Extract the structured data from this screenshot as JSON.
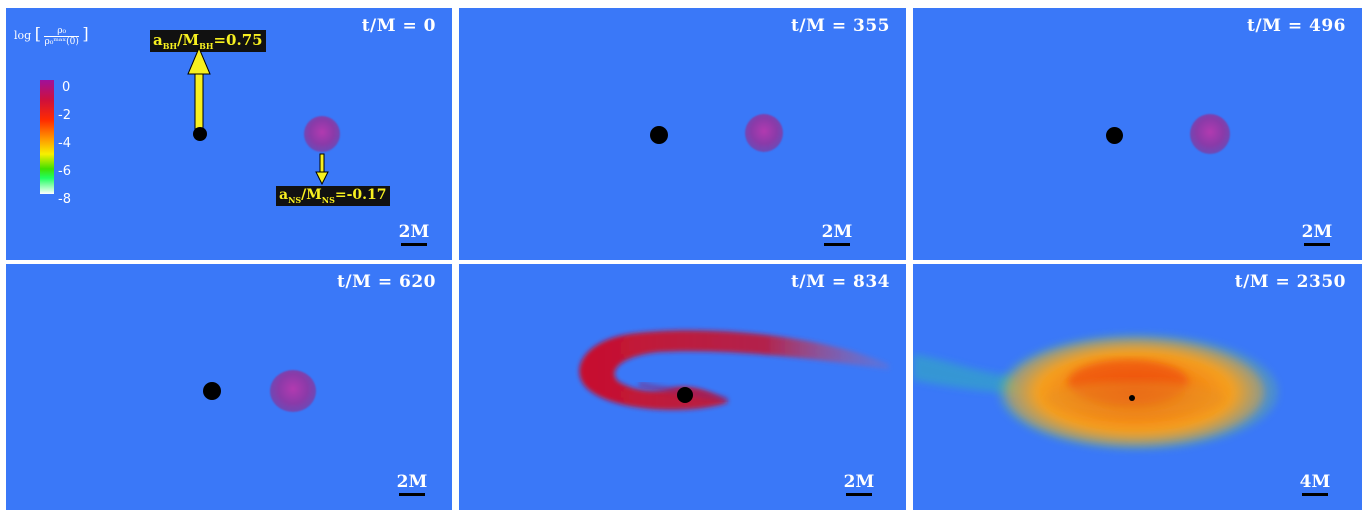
{
  "panels": [
    {
      "time": "t/M = 0",
      "scale": "2M"
    },
    {
      "time": "t/M = 355",
      "scale": "2M"
    },
    {
      "time": "t/M = 496",
      "scale": "2M"
    },
    {
      "time": "t/M = 620",
      "scale": "2M"
    },
    {
      "time": "t/M = 834",
      "scale": "2M"
    },
    {
      "time": "t/M = 2350",
      "scale": "4M"
    }
  ],
  "colorbar": {
    "title_log": "log",
    "title_num": "ρ₀",
    "title_den": "ρ₀ᵐᵃˣ(0)",
    "ticks": [
      "0",
      "-2",
      "-4",
      "-6",
      "-8"
    ]
  },
  "spin_labels": {
    "bh_a": "a",
    "bh_sub": "BH",
    "bh_rest": "/M",
    "bh_sub2": "BH",
    "bh_value": "=0.75",
    "ns_a": "a",
    "ns_sub": "NS",
    "ns_rest": "/M",
    "ns_sub2": "NS",
    "ns_value": "=-0.17"
  },
  "colors": {
    "background": "#3a78f8",
    "arrow": "#f7f020",
    "black_hole": "#000000",
    "neutron_star": "#9a3aa8"
  }
}
